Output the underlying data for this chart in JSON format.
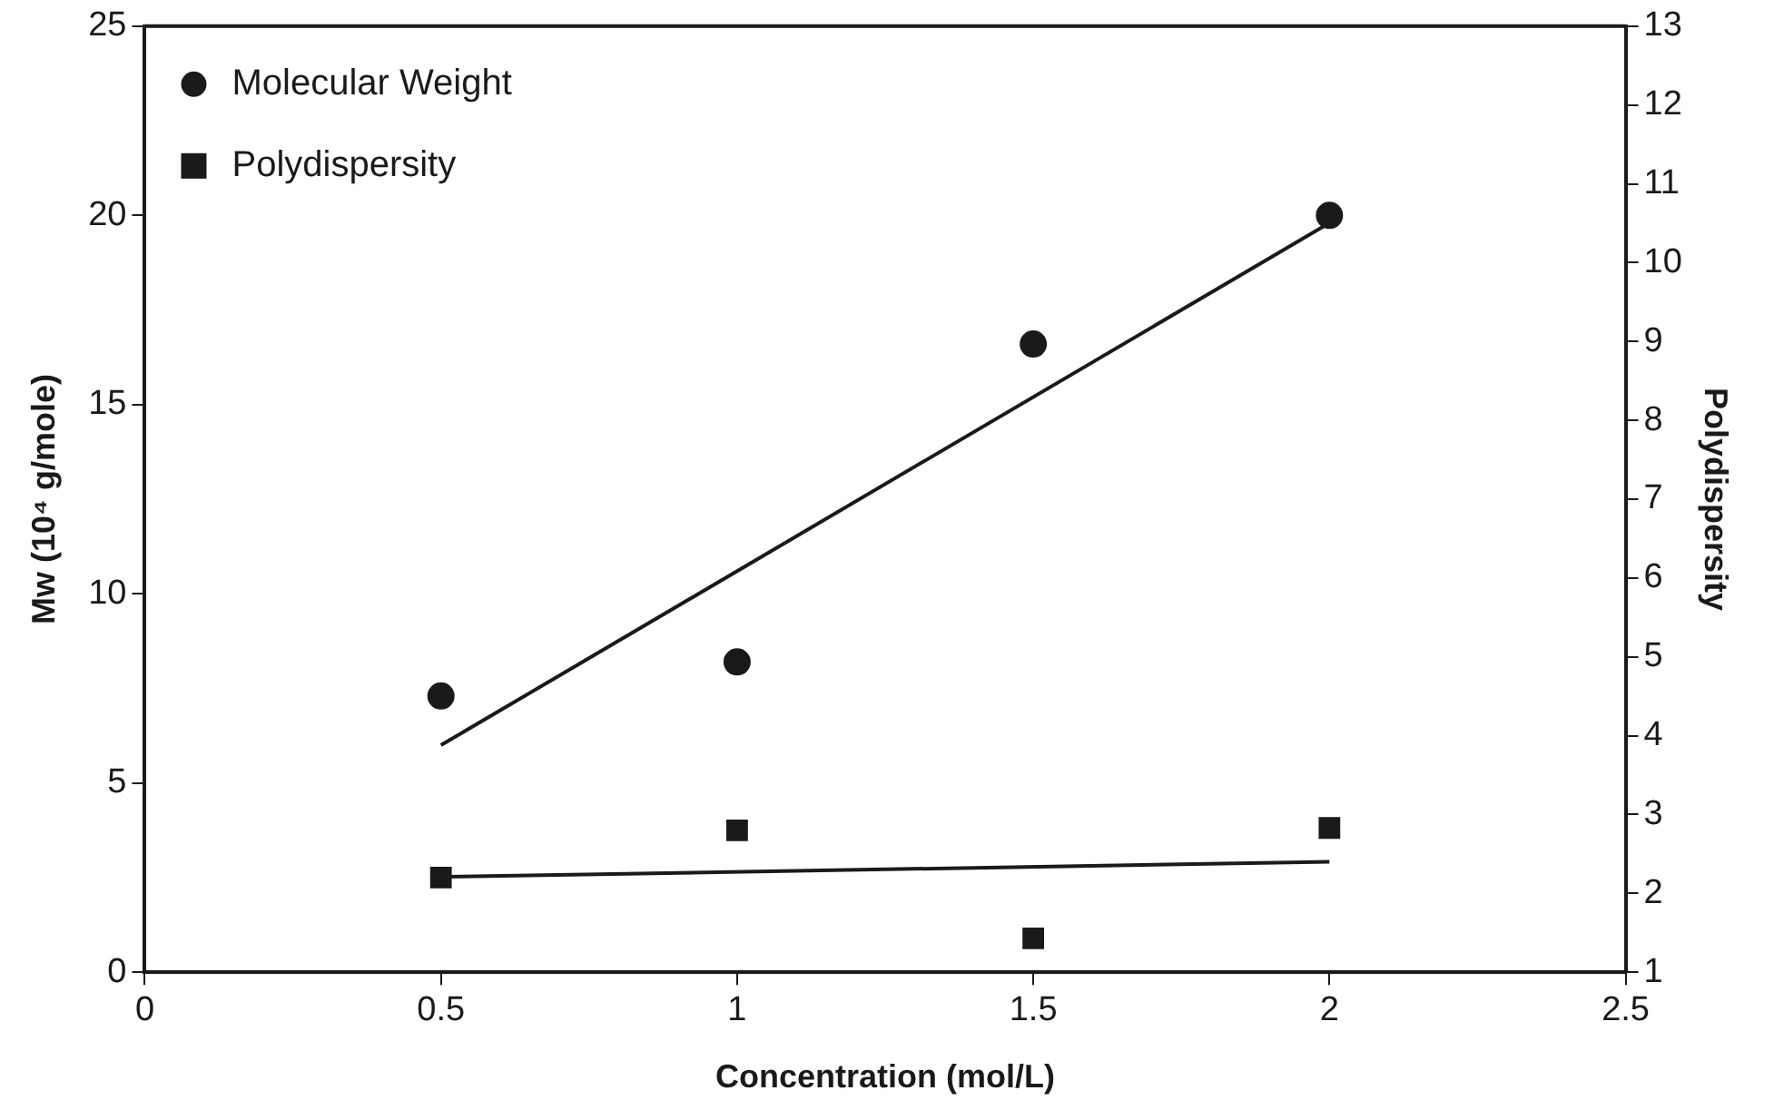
{
  "chart_data": {
    "type": "scatter",
    "xlabel": "Concentration (mol/L)",
    "ylabel": "Mw (10⁴ g/mole)",
    "y2label": "Polydispersity",
    "xlim": [
      0,
      2.5
    ],
    "xticks": [
      0,
      0.5,
      1,
      1.5,
      2,
      2.5
    ],
    "ylim": [
      0,
      25
    ],
    "yticks": [
      0,
      5,
      10,
      15,
      20,
      25
    ],
    "y2lim": [
      1,
      13
    ],
    "y2ticks": [
      1,
      2,
      3,
      4,
      5,
      6,
      7,
      8,
      9,
      10,
      11,
      12,
      13
    ],
    "grid": false,
    "legend": "top left",
    "series": [
      {
        "name": "Molecular Weight",
        "color": "#1a1a1a",
        "marker": "circle",
        "x": [
          0.5,
          1,
          1.5,
          2
        ],
        "values": [
          7.3,
          8.2,
          16.6,
          20.0
        ]
      },
      {
        "name": "Polydispersity",
        "color": "#1a1a1a",
        "marker": "square",
        "axis": "y2",
        "x": [
          0.5,
          1,
          1.5,
          2
        ],
        "values": [
          2.2,
          2.8,
          1.43,
          2.83
        ]
      },
      {
        "type": "line",
        "color": "#1a1a1a",
        "marker": "none",
        "x": [
          0.5,
          2
        ],
        "values": [
          6.0,
          19.8
        ]
      },
      {
        "type": "line",
        "color": "#1a1a1a",
        "marker": "none",
        "axis": "y2",
        "x": [
          0.5,
          2
        ],
        "values": [
          2.21,
          2.4
        ]
      }
    ]
  }
}
